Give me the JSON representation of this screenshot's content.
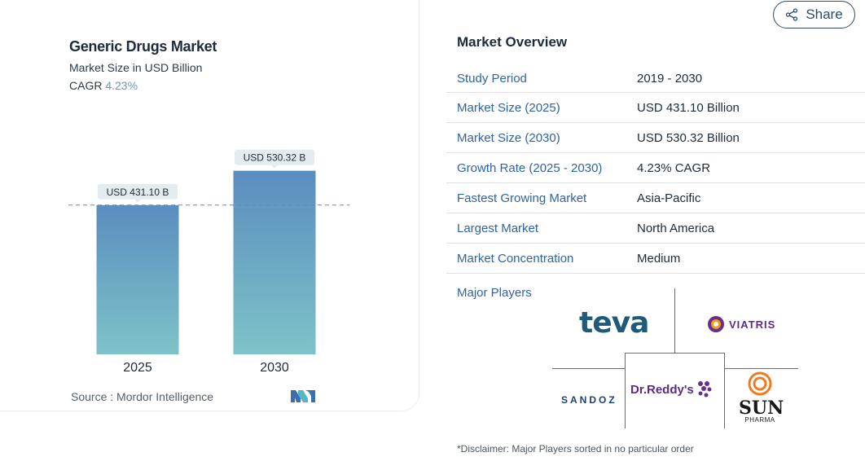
{
  "share": {
    "label": "Share",
    "icon": "share-icon"
  },
  "chart_data": {
    "type": "bar",
    "title": "Generic Drugs Market",
    "subtitle": "Market Size in USD Billion",
    "cagr_label": "CAGR",
    "cagr_value": "4.23%",
    "categories": [
      "2025",
      "2030"
    ],
    "values": [
      431.1,
      530.32
    ],
    "data_labels": [
      "USD 431.10 B",
      "USD 530.32 B"
    ],
    "ylim": [
      0,
      600
    ],
    "reference_line": 431.1,
    "colors": {
      "bar_top": "#5b8dbf",
      "bar_bottom": "#7ec3c8",
      "label_bg": "#e3ecef",
      "dashed": "#5b8dbf"
    },
    "source_label": "Source :",
    "source_value": "Mordor Intelligence"
  },
  "overview": {
    "title": "Market Overview",
    "rows": [
      {
        "key": "Study Period",
        "value": "2019 - 2030"
      },
      {
        "key": "Market Size (2025)",
        "value": "USD 431.10 Billion"
      },
      {
        "key": "Market Size (2030)",
        "value": "USD 530.32 Billion"
      },
      {
        "key": "Growth Rate (2025 - 2030)",
        "value": "4.23% CAGR"
      },
      {
        "key": "Fastest Growing Market",
        "value": "Asia-Pacific"
      },
      {
        "key": "Largest Market",
        "value": "North America"
      },
      {
        "key": "Market Concentration",
        "value": "Medium"
      }
    ],
    "major_players_label": "Major Players",
    "players": [
      "teva",
      "VIATRIS",
      "SANDOZ",
      "Dr.Reddy's",
      "SUN",
      "PHARMA"
    ]
  },
  "disclaimer": "*Disclaimer: Major Players sorted in no particular order"
}
